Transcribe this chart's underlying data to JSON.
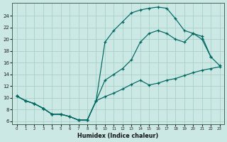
{
  "xlabel": "Humidex (Indice chaleur)",
  "bg_color": "#cce8e4",
  "grid_color": "#a0ccc4",
  "line_color": "#006660",
  "xlim": [
    -0.5,
    23.5
  ],
  "ylim": [
    5.5,
    26.2
  ],
  "xticks": [
    0,
    1,
    2,
    3,
    4,
    5,
    6,
    7,
    8,
    9,
    10,
    11,
    12,
    13,
    14,
    15,
    16,
    17,
    18,
    19,
    20,
    21,
    22,
    23
  ],
  "yticks": [
    6,
    8,
    10,
    12,
    14,
    16,
    18,
    20,
    22,
    24
  ],
  "line1_x": [
    0,
    1,
    2,
    3,
    4,
    5,
    6,
    7,
    8,
    9,
    10,
    11,
    12,
    13,
    14,
    15,
    16,
    17,
    18,
    19,
    20,
    21,
    22,
    23
  ],
  "line1_y": [
    10.3,
    9.5,
    9.0,
    8.2,
    7.2,
    7.2,
    6.8,
    6.2,
    6.2,
    9.5,
    10.2,
    10.8,
    11.5,
    12.3,
    13.0,
    12.2,
    12.5,
    13.0,
    13.3,
    13.8,
    14.3,
    14.7,
    15.0,
    15.3
  ],
  "line2_x": [
    0,
    1,
    2,
    3,
    4,
    5,
    6,
    7,
    8,
    9,
    10,
    11,
    12,
    13,
    14,
    15,
    16,
    17,
    18,
    19,
    20,
    21,
    22,
    23
  ],
  "line2_y": [
    10.3,
    9.5,
    9.0,
    8.2,
    7.2,
    7.2,
    6.8,
    6.2,
    6.2,
    9.5,
    19.5,
    21.5,
    23.0,
    24.5,
    25.0,
    25.3,
    25.5,
    25.3,
    23.5,
    21.5,
    21.0,
    20.5,
    17.0,
    15.5
  ],
  "line3_x": [
    0,
    1,
    2,
    3,
    4,
    5,
    6,
    7,
    8,
    9,
    10,
    11,
    12,
    13,
    14,
    15,
    16,
    17,
    18,
    19,
    20,
    21,
    22
  ],
  "line3_y": [
    10.3,
    9.5,
    9.0,
    8.2,
    7.2,
    7.2,
    6.8,
    6.2,
    6.2,
    9.5,
    13.0,
    14.0,
    15.0,
    16.5,
    19.5,
    21.0,
    21.5,
    21.0,
    20.0,
    19.5,
    21.0,
    20.0,
    17.0
  ]
}
